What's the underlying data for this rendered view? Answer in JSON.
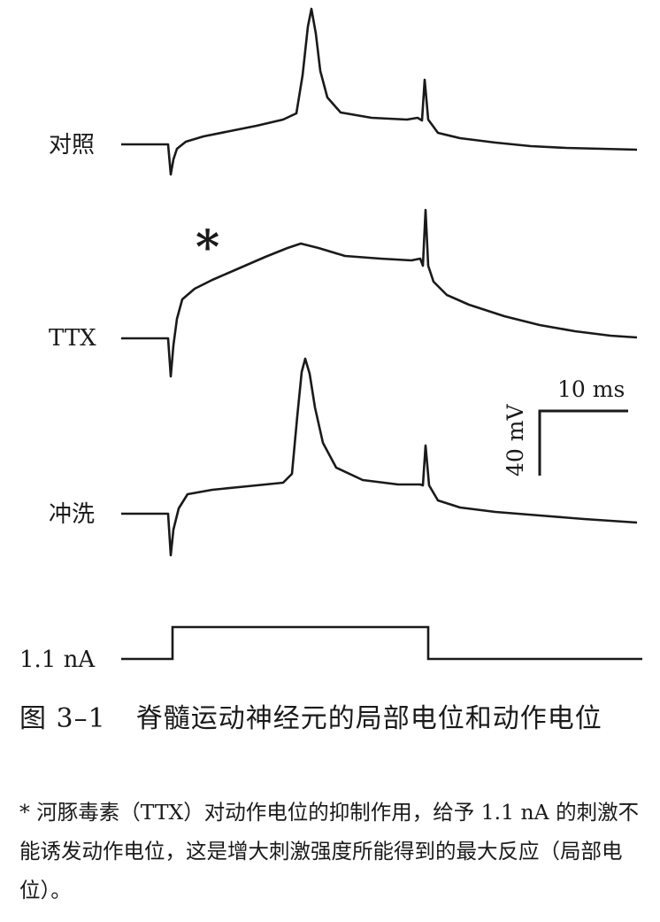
{
  "figure": {
    "traces": [
      {
        "id": "control",
        "label": "对照"
      },
      {
        "id": "ttx",
        "label": "TTX"
      },
      {
        "id": "washout",
        "label": "冲洗"
      },
      {
        "id": "stimulus",
        "label": "1.1 nA"
      }
    ],
    "asterisk": "*",
    "scale_bar": {
      "time": "10 ms",
      "voltage": "40 mV"
    }
  },
  "caption": {
    "number": "图 3–1",
    "title": "脊髓运动神经元的局部电位和动作电位",
    "note": "* 河豚毒素（TTX）对动作电位的抑制作用，给予 1.1 nA 的刺激不能诱发动作电位，这是增大刺激强度所能得到的最大反应（局部电位）。"
  }
}
